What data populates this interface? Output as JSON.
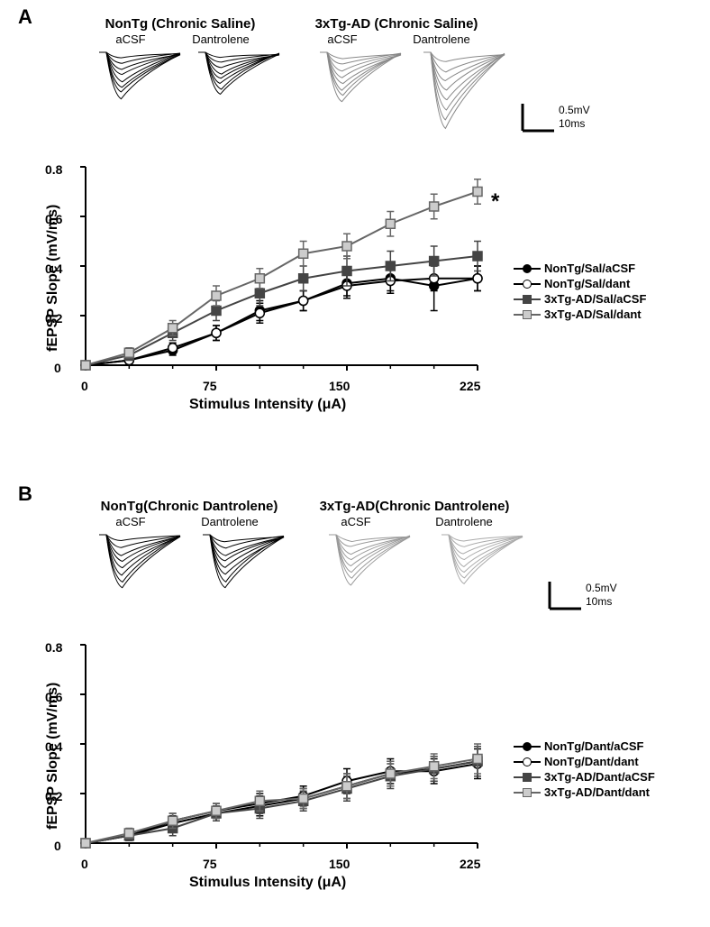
{
  "panelA": {
    "label": "A",
    "groups": [
      {
        "title": "NonTg (Chronic Saline)",
        "sub": [
          "aCSF",
          "Dantrolene"
        ],
        "color": "#000000"
      },
      {
        "title": "3xTg-AD (Chronic Saline)",
        "sub": [
          "aCSF",
          "Dantrolene"
        ],
        "color": "#888888"
      }
    ],
    "scale": {
      "v": "0.5mV",
      "h": "10ms"
    },
    "chart": {
      "xlim": [
        0,
        225
      ],
      "ylim": [
        0,
        0.8
      ],
      "xticks": [
        0,
        75,
        150,
        225
      ],
      "yticks": [
        0,
        0.2,
        0.4,
        0.6,
        0.8
      ],
      "xlabel": "Stimulus Intensity (μA)",
      "ylabel": "fEPSP Slope (mV/ms)",
      "x": [
        0,
        25,
        50,
        75,
        100,
        125,
        150,
        175,
        200,
        225
      ],
      "series": [
        {
          "name": "NonTg/Sal/aCSF",
          "shape": "circle",
          "fill": "#000000",
          "stroke": "#000000",
          "y": [
            0,
            0.02,
            0.06,
            0.13,
            0.22,
            0.26,
            0.33,
            0.35,
            0.32,
            0.35
          ],
          "err": [
            0,
            0.01,
            0.02,
            0.03,
            0.04,
            0.04,
            0.05,
            0.05,
            0.1,
            0.05
          ]
        },
        {
          "name": "NonTg/Sal/dant",
          "shape": "circle",
          "fill": "#ffffff",
          "stroke": "#000000",
          "y": [
            0,
            0.02,
            0.07,
            0.13,
            0.21,
            0.26,
            0.32,
            0.34,
            0.35,
            0.35
          ],
          "err": [
            0,
            0.01,
            0.02,
            0.03,
            0.04,
            0.04,
            0.05,
            0.05,
            0.05,
            0.05
          ]
        },
        {
          "name": "3xTg-AD/Sal/aCSF",
          "shape": "square",
          "fill": "#444444",
          "stroke": "#444444",
          "y": [
            0,
            0.04,
            0.13,
            0.22,
            0.29,
            0.35,
            0.38,
            0.4,
            0.42,
            0.44
          ],
          "err": [
            0,
            0.02,
            0.03,
            0.04,
            0.05,
            0.05,
            0.06,
            0.06,
            0.06,
            0.06
          ]
        },
        {
          "name": "3xTg-AD/Sal/dant",
          "shape": "square",
          "fill": "#cccccc",
          "stroke": "#666666",
          "y": [
            0,
            0.05,
            0.15,
            0.28,
            0.35,
            0.45,
            0.48,
            0.57,
            0.64,
            0.7
          ],
          "err": [
            0,
            0.02,
            0.03,
            0.04,
            0.04,
            0.05,
            0.05,
            0.05,
            0.05,
            0.05
          ]
        }
      ],
      "star": "*"
    },
    "traces": [
      {
        "color": "#000000",
        "depth": 0.6
      },
      {
        "color": "#000000",
        "depth": 0.55
      },
      {
        "color": "#888888",
        "depth": 0.65
      },
      {
        "color": "#888888",
        "depth": 1.0
      }
    ]
  },
  "panelB": {
    "label": "B",
    "groups": [
      {
        "title": "NonTg(Chronic Dantrolene)",
        "sub": [
          "aCSF",
          "Dantrolene"
        ],
        "color": "#000000"
      },
      {
        "title": "3xTg-AD(Chronic Dantrolene)",
        "sub": [
          "aCSF",
          "Dantrolene"
        ],
        "color": "#888888"
      }
    ],
    "scale": {
      "v": "0.5mV",
      "h": "10ms"
    },
    "chart": {
      "xlim": [
        0,
        225
      ],
      "ylim": [
        0,
        0.8
      ],
      "xticks": [
        0,
        75,
        150,
        225
      ],
      "yticks": [
        0,
        0.2,
        0.4,
        0.6,
        0.8
      ],
      "xlabel": "Stimulus Intensity (μA)",
      "ylabel": "fEPSP Slope (mV/ms)",
      "x": [
        0,
        25,
        50,
        75,
        100,
        125,
        150,
        175,
        200,
        225
      ],
      "series": [
        {
          "name": "NonTg/Dant/aCSF",
          "shape": "circle",
          "fill": "#000000",
          "stroke": "#000000",
          "y": [
            0,
            0.03,
            0.08,
            0.12,
            0.15,
            0.18,
            0.23,
            0.28,
            0.3,
            0.33
          ],
          "err": [
            0,
            0.02,
            0.03,
            0.03,
            0.04,
            0.04,
            0.05,
            0.05,
            0.05,
            0.06
          ]
        },
        {
          "name": "NonTg/Dant/dant",
          "shape": "circle",
          "fill": "#ffffff",
          "stroke": "#000000",
          "y": [
            0,
            0.03,
            0.09,
            0.13,
            0.16,
            0.19,
            0.25,
            0.29,
            0.29,
            0.32
          ],
          "err": [
            0,
            0.02,
            0.03,
            0.03,
            0.04,
            0.04,
            0.05,
            0.05,
            0.05,
            0.06
          ]
        },
        {
          "name": "3xTg-AD/Dant/aCSF",
          "shape": "square",
          "fill": "#444444",
          "stroke": "#444444",
          "y": [
            0,
            0.03,
            0.06,
            0.12,
            0.14,
            0.17,
            0.22,
            0.27,
            0.3,
            0.33
          ],
          "err": [
            0,
            0.02,
            0.03,
            0.03,
            0.04,
            0.04,
            0.05,
            0.05,
            0.05,
            0.06
          ]
        },
        {
          "name": "3xTg-AD/Dant/dant",
          "shape": "square",
          "fill": "#cccccc",
          "stroke": "#666666",
          "y": [
            0,
            0.04,
            0.09,
            0.13,
            0.17,
            0.18,
            0.23,
            0.28,
            0.31,
            0.34
          ],
          "err": [
            0,
            0.02,
            0.03,
            0.03,
            0.04,
            0.04,
            0.05,
            0.05,
            0.05,
            0.06
          ]
        }
      ]
    },
    "traces": [
      {
        "color": "#000000",
        "depth": 0.7
      },
      {
        "color": "#000000",
        "depth": 0.7
      },
      {
        "color": "#999999",
        "depth": 0.65
      },
      {
        "color": "#aaaaaa",
        "depth": 0.65
      }
    ]
  }
}
